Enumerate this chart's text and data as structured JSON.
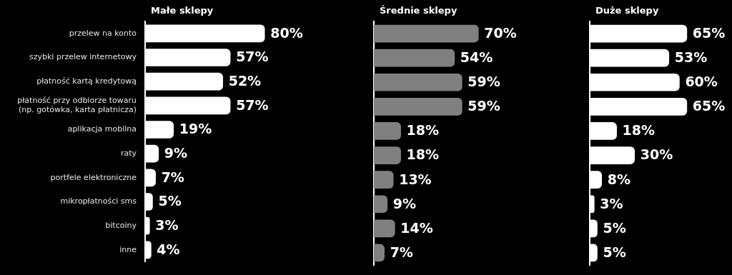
{
  "chart_data": [
    {
      "type": "bar",
      "orientation": "horizontal",
      "title": "Małe sklepy",
      "categories": [
        "przelew na konto",
        "szybki przelew internetowy",
        "płatność kartą kredytową",
        "płatność przy odbiorze towaru\n(np. gotówka, karta płatnicza)",
        "aplikacja mobilna",
        "raty",
        "portfele elektroniczne",
        "mikropłatności sms",
        "bitcoiny",
        "inne"
      ],
      "values": [
        80,
        57,
        52,
        57,
        19,
        9,
        7,
        5,
        3,
        4
      ],
      "value_labels": [
        "80%",
        "57%",
        "52%",
        "57%",
        "19%",
        "9%",
        "7%",
        "5%",
        "3%",
        "4%"
      ],
      "color": "#ffffff",
      "tick_labels": "y"
    },
    {
      "type": "bar",
      "orientation": "horizontal",
      "title": "Średnie sklepy",
      "values": [
        70,
        54,
        59,
        59,
        18,
        18,
        13,
        9,
        14,
        7
      ],
      "value_labels": [
        "70%",
        "54%",
        "59%",
        "59%",
        "18%",
        "18%",
        "13%",
        "9%",
        "14%",
        "7%"
      ],
      "color": "#808080",
      "tick_labels": false
    },
    {
      "type": "bar",
      "orientation": "horizontal",
      "title": "Duże sklepy",
      "values": [
        65,
        53,
        60,
        65,
        18,
        30,
        8,
        3,
        5,
        5
      ],
      "value_labels": [
        "65%",
        "53%",
        "60%",
        "65%",
        "18%",
        "30%",
        "8%",
        "3%",
        "5%",
        "5%"
      ],
      "color": "#ffffff",
      "tick_labels": false
    }
  ]
}
